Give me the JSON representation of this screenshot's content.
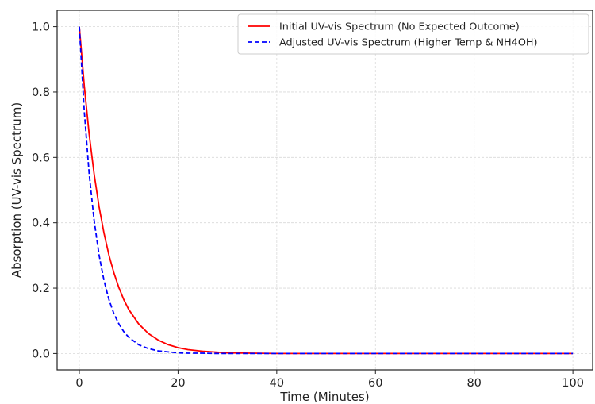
{
  "chart_data": {
    "type": "line",
    "title": "",
    "xlabel": "Time (Minutes)",
    "ylabel": "Absorption (UV-vis Spectrum)",
    "xlim": [
      -4.5,
      104
    ],
    "ylim": [
      -0.05,
      1.05
    ],
    "x_ticks": [
      0,
      20,
      40,
      60,
      80,
      100
    ],
    "y_ticks": [
      0.0,
      0.2,
      0.4,
      0.6,
      0.8,
      1.0
    ],
    "x_tick_labels": [
      "0",
      "20",
      "40",
      "60",
      "80",
      "100"
    ],
    "y_tick_labels": [
      "0.0",
      "0.2",
      "0.4",
      "0.6",
      "0.8",
      "1.0"
    ],
    "grid": true,
    "legend_position": "top-right",
    "x": [
      0,
      1,
      2,
      3,
      4,
      5,
      6,
      7,
      8,
      9,
      10,
      12,
      14,
      16,
      18,
      20,
      22,
      25,
      28,
      30,
      35,
      40,
      50,
      60,
      70,
      80,
      90,
      100
    ],
    "series": [
      {
        "name": "Initial UV-vis Spectrum (No Expected Outcome)",
        "color": "#ff0000",
        "line_style": "solid",
        "values": [
          1.0,
          0.819,
          0.67,
          0.549,
          0.449,
          0.368,
          0.301,
          0.247,
          0.202,
          0.165,
          0.135,
          0.091,
          0.061,
          0.041,
          0.027,
          0.018,
          0.012,
          0.007,
          0.004,
          0.002,
          0.001,
          0.0,
          0.0,
          0.0,
          0.0,
          0.0,
          0.0,
          0.0
        ]
      },
      {
        "name": "Adjusted UV-vis Spectrum (Higher Temp & NH4OH)",
        "color": "#0000ff",
        "line_style": "dashed",
        "values": [
          1.0,
          0.741,
          0.549,
          0.407,
          0.301,
          0.223,
          0.165,
          0.122,
          0.091,
          0.067,
          0.05,
          0.027,
          0.015,
          0.008,
          0.005,
          0.002,
          0.001,
          0.001,
          0.0,
          0.0,
          0.0,
          0.0,
          0.0,
          0.0,
          0.0,
          0.0,
          0.0,
          0.0
        ]
      }
    ]
  }
}
